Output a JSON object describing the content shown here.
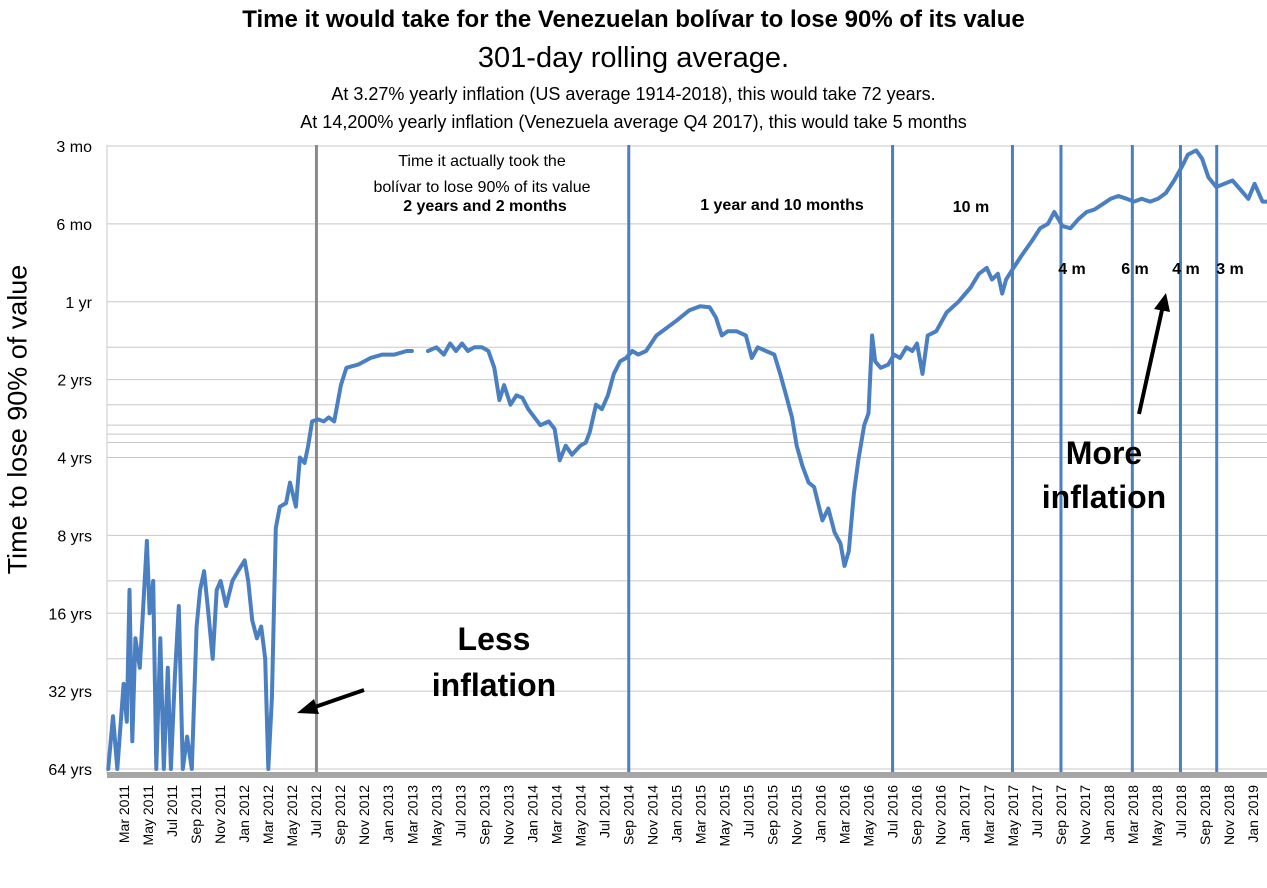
{
  "title": "Time it would take for the Venezuelan bolívar to lose 90% of its value",
  "subtitle": "301-day rolling average.",
  "note_us": "At 3.27% yearly inflation (US average 1914-2018), this would take 72 years.",
  "note_ve": "At 14,200% yearly inflation (Venezuela average Q4 2017), this would take 5 months",
  "colors": {
    "line": "#4a7fc1",
    "vline_blue": "#4a7fc1",
    "vline_grey": "#8a8a8a",
    "grid": "#c8c8c8",
    "axis": "#a6a6a6"
  },
  "chart_data": {
    "type": "line",
    "title": "Time it would take for the Venezuelan bolívar to lose 90% of its value",
    "subtitle": "301-day rolling average.",
    "ylabel": "Time to lose 90% of value",
    "xlabel": "",
    "y_scale": "log",
    "y_unit": "years",
    "y_axis_inverted": true,
    "ylim_years": [
      64,
      0.25
    ],
    "y_ticks": [
      {
        "label": "3 mo",
        "years": 0.25
      },
      {
        "label": "6 mo",
        "years": 0.5
      },
      {
        "label": "1 yr",
        "years": 1
      },
      {
        "label": "2 yrs",
        "years": 2
      },
      {
        "label": "4 yrs",
        "years": 4
      },
      {
        "label": "8 yrs",
        "years": 8
      },
      {
        "label": "16 yrs",
        "years": 16
      },
      {
        "label": "32 yrs",
        "years": 32
      },
      {
        "label": "64 yrs",
        "years": 64
      }
    ],
    "x_ticks": [
      "Mar 2011",
      "May 2011",
      "Jul 2011",
      "Sep 2011",
      "Nov 2011",
      "Jan 2012",
      "Mar 2012",
      "May 2012",
      "Jul 2012",
      "Sep 2012",
      "Nov 2012",
      "Jan 2013",
      "Mar 2013",
      "May 2013",
      "Jul 2013",
      "Sep 2013",
      "Nov 2013",
      "Jan 2014",
      "Mar 2014",
      "May 2014",
      "Jul 2014",
      "Sep 2014",
      "Nov 2014",
      "Jan 2015",
      "Mar 2015",
      "May 2015",
      "Jul 2015",
      "Sep 2015",
      "Nov 2015",
      "Jan 2016",
      "Mar 2016",
      "May 2016",
      "Jul 2016",
      "Sep 2016",
      "Nov 2016",
      "Jan 2017",
      "Mar 2017",
      "May 2017",
      "Jul 2017",
      "Sep 2017",
      "Nov 2017",
      "Jan 2018",
      "Mar 2018",
      "May 2018",
      "Jul 2018",
      "Sep 2018",
      "Nov 2018",
      "Jan 2019"
    ],
    "grid": true,
    "legend": "none",
    "vertical_markers": [
      {
        "date": "2012-07",
        "color": "grey"
      },
      {
        "date": "2014-09",
        "color": "blue"
      },
      {
        "date": "2016-07",
        "color": "blue"
      },
      {
        "date": "2017-05",
        "color": "blue"
      },
      {
        "date": "2017-09",
        "color": "blue"
      },
      {
        "date": "2018-03",
        "color": "blue"
      },
      {
        "date": "2018-07",
        "color": "blue"
      },
      {
        "date": "2018-10",
        "color": "blue"
      }
    ],
    "segment_labels": [
      {
        "text": "Time it actually took the",
        "bold": false
      },
      {
        "text": "bolívar to lose 90% of its value",
        "bold": false
      },
      {
        "text": "2 years and 2 months",
        "bold": true
      },
      {
        "text": "1 year and 10 months",
        "bold": true
      },
      {
        "text": "10 m",
        "bold": true
      },
      {
        "text": "4 m",
        "bold": true
      },
      {
        "text": "6 m",
        "bold": true
      },
      {
        "text": "4 m",
        "bold": true
      },
      {
        "text": "3 m",
        "bold": true
      }
    ],
    "annotations": {
      "less": [
        "Less",
        "inflation"
      ],
      "more": [
        "More",
        "inflation"
      ]
    },
    "series": [
      {
        "color": "#4a7fc1",
        "points": [
          [
            "2011-01-20",
            64
          ],
          [
            "2011-02-01",
            40
          ],
          [
            "2011-02-12",
            64
          ],
          [
            "2011-02-28",
            30
          ],
          [
            "2011-03-08",
            42
          ],
          [
            "2011-03-15",
            13
          ],
          [
            "2011-03-22",
            50
          ],
          [
            "2011-03-30",
            20
          ],
          [
            "2011-04-10",
            26
          ],
          [
            "2011-04-20",
            14
          ],
          [
            "2011-04-28",
            8.4
          ],
          [
            "2011-05-05",
            16
          ],
          [
            "2011-05-14",
            12
          ],
          [
            "2011-05-22",
            64
          ],
          [
            "2011-06-01",
            20
          ],
          [
            "2011-06-10",
            64
          ],
          [
            "2011-06-20",
            26
          ],
          [
            "2011-06-28",
            64
          ],
          [
            "2011-07-08",
            28
          ],
          [
            "2011-07-18",
            15
          ],
          [
            "2011-07-28",
            64
          ],
          [
            "2011-08-08",
            48
          ],
          [
            "2011-08-20",
            64
          ],
          [
            "2011-09-01",
            18
          ],
          [
            "2011-09-10",
            13
          ],
          [
            "2011-09-20",
            11
          ],
          [
            "2011-10-01",
            16
          ],
          [
            "2011-10-12",
            24
          ],
          [
            "2011-10-22",
            13
          ],
          [
            "2011-11-01",
            12
          ],
          [
            "2011-11-15",
            15
          ],
          [
            "2011-12-01",
            12
          ],
          [
            "2011-12-15",
            11
          ],
          [
            "2012-01-01",
            10
          ],
          [
            "2012-01-10",
            12
          ],
          [
            "2012-01-20",
            17
          ],
          [
            "2012-02-01",
            20
          ],
          [
            "2012-02-12",
            18
          ],
          [
            "2012-02-22",
            24
          ],
          [
            "2012-03-01",
            64
          ],
          [
            "2012-03-10",
            34
          ],
          [
            "2012-03-20",
            7.5
          ],
          [
            "2012-03-30",
            6.2
          ],
          [
            "2012-04-15",
            6.0
          ],
          [
            "2012-04-25",
            5.0
          ],
          [
            "2012-05-10",
            6.2
          ],
          [
            "2012-05-20",
            4.0
          ],
          [
            "2012-06-01",
            4.2
          ],
          [
            "2012-06-10",
            3.6
          ],
          [
            "2012-06-20",
            2.9
          ],
          [
            "2012-07-05",
            2.85
          ],
          [
            "2012-07-20",
            2.9
          ],
          [
            "2012-08-01",
            2.8
          ],
          [
            "2012-08-15",
            2.9
          ],
          [
            "2012-09-01",
            2.1
          ],
          [
            "2012-09-15",
            1.8
          ],
          [
            "2012-10-15",
            1.75
          ],
          [
            "2012-11-15",
            1.65
          ],
          [
            "2012-12-15",
            1.6
          ],
          [
            "2013-01-15",
            1.6
          ],
          [
            "2013-02-15",
            1.55
          ],
          [
            "2013-02-28",
            1.55
          ]
        ]
      },
      {
        "color": "#4a7fc1",
        "points": [
          [
            "2013-04-10",
            1.55
          ],
          [
            "2013-05-01",
            1.5
          ],
          [
            "2013-05-20",
            1.6
          ],
          [
            "2013-06-05",
            1.45
          ],
          [
            "2013-06-20",
            1.55
          ],
          [
            "2013-07-05",
            1.45
          ],
          [
            "2013-07-20",
            1.55
          ],
          [
            "2013-08-05",
            1.5
          ],
          [
            "2013-08-25",
            1.5
          ],
          [
            "2013-09-10",
            1.55
          ],
          [
            "2013-09-25",
            1.8
          ],
          [
            "2013-10-08",
            2.4
          ],
          [
            "2013-10-20",
            2.1
          ],
          [
            "2013-11-05",
            2.5
          ],
          [
            "2013-11-20",
            2.3
          ],
          [
            "2013-12-05",
            2.35
          ],
          [
            "2013-12-20",
            2.6
          ],
          [
            "2014-01-05",
            2.8
          ],
          [
            "2014-01-20",
            3.0
          ],
          [
            "2014-02-10",
            2.9
          ],
          [
            "2014-02-25",
            3.1
          ],
          [
            "2014-03-10",
            4.1
          ],
          [
            "2014-03-25",
            3.6
          ],
          [
            "2014-04-10",
            3.9
          ],
          [
            "2014-05-01",
            3.6
          ],
          [
            "2014-05-15",
            3.5
          ],
          [
            "2014-05-25",
            3.2
          ],
          [
            "2014-06-10",
            2.5
          ],
          [
            "2014-06-25",
            2.6
          ],
          [
            "2014-07-10",
            2.3
          ],
          [
            "2014-07-25",
            1.9
          ],
          [
            "2014-08-10",
            1.7
          ],
          [
            "2014-08-25",
            1.65
          ],
          [
            "2014-09-10",
            1.55
          ],
          [
            "2014-09-25",
            1.6
          ],
          [
            "2014-10-15",
            1.55
          ],
          [
            "2014-11-10",
            1.35
          ],
          [
            "2014-12-01",
            1.28
          ],
          [
            "2015-01-01",
            1.18
          ],
          [
            "2015-02-01",
            1.08
          ],
          [
            "2015-03-01",
            1.04
          ],
          [
            "2015-03-25",
            1.05
          ],
          [
            "2015-04-10",
            1.15
          ],
          [
            "2015-04-25",
            1.35
          ],
          [
            "2015-05-10",
            1.3
          ],
          [
            "2015-06-01",
            1.3
          ],
          [
            "2015-06-25",
            1.35
          ],
          [
            "2015-07-10",
            1.65
          ],
          [
            "2015-07-25",
            1.5
          ],
          [
            "2015-08-15",
            1.55
          ],
          [
            "2015-09-05",
            1.6
          ],
          [
            "2015-09-20",
            1.9
          ],
          [
            "2015-10-05",
            2.3
          ],
          [
            "2015-10-20",
            2.8
          ],
          [
            "2015-11-01",
            3.6
          ],
          [
            "2015-11-15",
            4.3
          ],
          [
            "2015-12-01",
            5.0
          ],
          [
            "2015-12-15",
            5.2
          ],
          [
            "2016-01-05",
            7.0
          ],
          [
            "2016-01-20",
            6.3
          ],
          [
            "2016-02-05",
            7.8
          ],
          [
            "2016-02-20",
            8.6
          ],
          [
            "2016-03-01",
            10.5
          ],
          [
            "2016-03-12",
            9.2
          ],
          [
            "2016-03-25",
            5.5
          ],
          [
            "2016-04-05",
            4.1
          ],
          [
            "2016-04-20",
            3.0
          ],
          [
            "2016-05-01",
            2.7
          ],
          [
            "2016-05-10",
            1.35
          ],
          [
            "2016-05-18",
            1.7
          ],
          [
            "2016-06-01",
            1.8
          ],
          [
            "2016-06-20",
            1.75
          ],
          [
            "2016-07-05",
            1.6
          ],
          [
            "2016-07-20",
            1.65
          ],
          [
            "2016-08-05",
            1.5
          ],
          [
            "2016-08-20",
            1.55
          ],
          [
            "2016-09-01",
            1.45
          ],
          [
            "2016-09-15",
            1.9
          ],
          [
            "2016-09-28",
            1.35
          ],
          [
            "2016-10-20",
            1.3
          ],
          [
            "2016-11-15",
            1.1
          ],
          [
            "2016-12-15",
            1.0
          ],
          [
            "2017-01-15",
            0.88
          ],
          [
            "2017-02-05",
            0.78
          ],
          [
            "2017-02-25",
            0.74
          ],
          [
            "2017-03-10",
            0.82
          ],
          [
            "2017-03-25",
            0.78
          ],
          [
            "2017-04-05",
            0.93
          ],
          [
            "2017-04-15",
            0.82
          ],
          [
            "2017-05-01",
            0.75
          ],
          [
            "2017-05-25",
            0.66
          ],
          [
            "2017-06-20",
            0.58
          ],
          [
            "2017-07-10",
            0.52
          ],
          [
            "2017-07-30",
            0.5
          ],
          [
            "2017-08-15",
            0.45
          ],
          [
            "2017-09-05",
            0.51
          ],
          [
            "2017-09-25",
            0.52
          ],
          [
            "2017-10-15",
            0.48
          ],
          [
            "2017-11-05",
            0.45
          ],
          [
            "2017-11-25",
            0.44
          ],
          [
            "2017-12-15",
            0.42
          ],
          [
            "2018-01-05",
            0.4
          ],
          [
            "2018-01-25",
            0.39
          ],
          [
            "2018-02-15",
            0.4
          ],
          [
            "2018-03-05",
            0.41
          ],
          [
            "2018-03-25",
            0.4
          ],
          [
            "2018-04-15",
            0.41
          ],
          [
            "2018-05-05",
            0.4
          ],
          [
            "2018-05-25",
            0.38
          ],
          [
            "2018-06-15",
            0.34
          ],
          [
            "2018-07-05",
            0.3
          ],
          [
            "2018-07-20",
            0.27
          ],
          [
            "2018-08-10",
            0.26
          ],
          [
            "2018-08-25",
            0.28
          ],
          [
            "2018-09-10",
            0.33
          ],
          [
            "2018-09-30",
            0.36
          ],
          [
            "2018-10-20",
            0.35
          ],
          [
            "2018-11-10",
            0.34
          ],
          [
            "2018-12-01",
            0.37
          ],
          [
            "2018-12-20",
            0.4
          ],
          [
            "2019-01-05",
            0.35
          ],
          [
            "2019-01-25",
            0.41
          ],
          [
            "2019-02-10",
            0.41
          ]
        ]
      }
    ]
  }
}
